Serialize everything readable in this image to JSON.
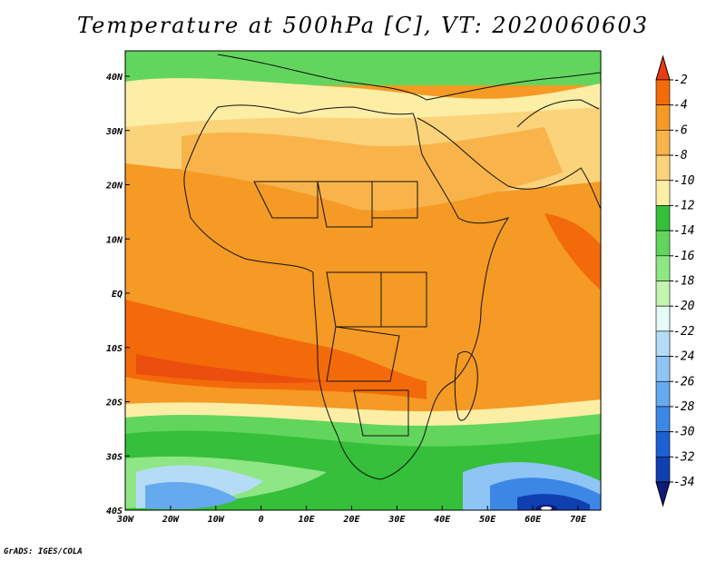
{
  "title": "Temperature at 500hPa [C], VT: 2020060603",
  "credit": "GrADS: IGES/COLA",
  "map": {
    "region": "Africa",
    "variable": "Temperature",
    "level": "500hPa",
    "units": "C",
    "valid_time": "2020060603",
    "lat_labels": [
      "40N",
      "30N",
      "20N",
      "10N",
      "EQ",
      "10S",
      "20S",
      "30S",
      "40S"
    ],
    "lon_labels": [
      "30W",
      "20W",
      "10W",
      "0",
      "10E",
      "20E",
      "30E",
      "40E",
      "50E",
      "60E",
      "70E"
    ],
    "lon_range": [
      -30,
      75
    ],
    "lat_range": [
      -40,
      45
    ]
  },
  "colorbar": {
    "labels": [
      "-2",
      "-4",
      "-6",
      "-8",
      "-10",
      "-12",
      "-14",
      "-16",
      "-18",
      "-20",
      "-22",
      "-24",
      "-26",
      "-28",
      "-30",
      "-32",
      "-34"
    ],
    "colors": [
      "#e83c10",
      "#f36a0a",
      "#f59a24",
      "#f8b44a",
      "#fbd37a",
      "#fdeea6",
      "#35bf3a",
      "#62d65c",
      "#8fe684",
      "#c2f4b2",
      "#e5fbf5",
      "#b5dcf7",
      "#8fc5f5",
      "#65a9ee",
      "#3c87e6",
      "#1f5fd4",
      "#103fb0",
      "#0c1c78"
    ]
  }
}
